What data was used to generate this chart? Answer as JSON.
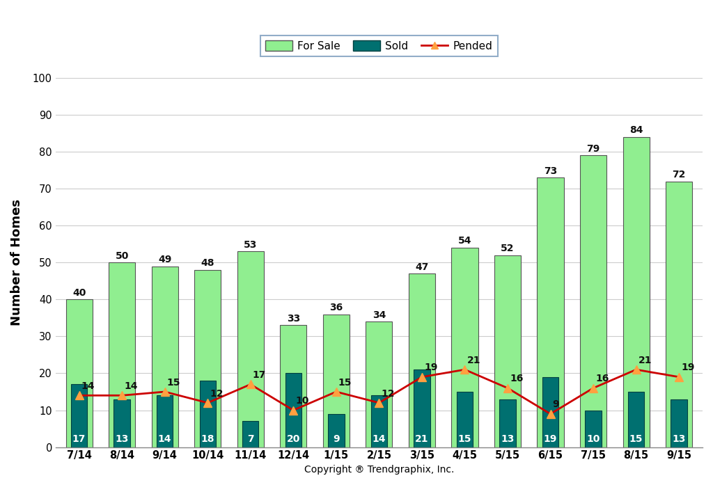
{
  "categories": [
    "7/14",
    "8/14",
    "9/14",
    "10/14",
    "11/14",
    "12/14",
    "1/15",
    "2/15",
    "3/15",
    "4/15",
    "5/15",
    "6/15",
    "7/15",
    "8/15",
    "9/15"
  ],
  "for_sale": [
    40,
    50,
    49,
    48,
    53,
    33,
    36,
    34,
    47,
    54,
    52,
    73,
    79,
    84,
    72
  ],
  "sold": [
    17,
    13,
    14,
    18,
    7,
    20,
    9,
    14,
    21,
    15,
    13,
    19,
    10,
    15,
    13
  ],
  "pended": [
    14,
    14,
    15,
    12,
    17,
    10,
    15,
    12,
    19,
    21,
    16,
    9,
    16,
    21,
    19
  ],
  "for_sale_color": "#90EE90",
  "for_sale_edge": "#555555",
  "sold_color": "#007070",
  "sold_edge": "#004040",
  "pended_color": "#CC0000",
  "pended_marker_color": "#FFA040",
  "ylabel": "Number of Homes",
  "xlabel": "Copyright ® Trendgraphix, Inc.",
  "ylim": [
    0,
    100
  ],
  "yticks": [
    0,
    10,
    20,
    30,
    40,
    50,
    60,
    70,
    80,
    90,
    100
  ],
  "for_sale_bar_width": 0.62,
  "sold_bar_width": 0.38,
  "legend_for_sale": "For Sale",
  "legend_sold": "Sold",
  "legend_pended": "Pended",
  "bg_color": "#FFFFFF",
  "grid_color": "#CCCCCC"
}
